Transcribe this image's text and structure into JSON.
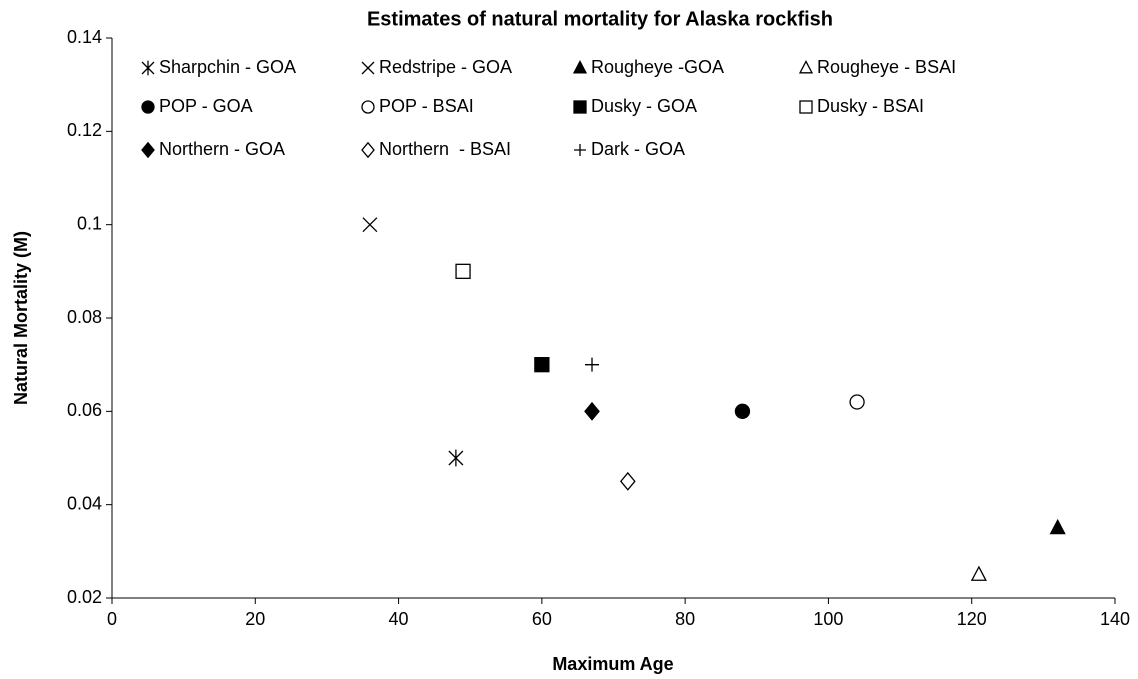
{
  "chart_data": {
    "type": "scatter",
    "title": "Estimates of natural mortality for Alaska rockfish",
    "x_label": "Maximum Age",
    "y_label": "Natural Mortality (M)",
    "xlim": [
      0,
      140
    ],
    "xticks": [
      0,
      20,
      40,
      60,
      80,
      100,
      120,
      140
    ],
    "ylim": [
      0.02,
      0.14
    ],
    "yticks": [
      0.02,
      0.04,
      0.06,
      0.08,
      0.1,
      0.12,
      0.14
    ],
    "grid": false,
    "color": "#000000",
    "series": [
      {
        "name": "Sharpchin - GOA",
        "marker": "asterisk",
        "x": [
          48
        ],
        "values": [
          0.05
        ]
      },
      {
        "name": "Redstripe - GOA",
        "marker": "cross",
        "x": [
          36
        ],
        "values": [
          0.1
        ]
      },
      {
        "name": "Rougheye -GOA",
        "marker": "triangle",
        "x": [
          132
        ],
        "values": [
          0.035
        ]
      },
      {
        "name": "Rougheye - BSAI",
        "marker": "triangle-open",
        "x": [
          121
        ],
        "values": [
          0.025
        ]
      },
      {
        "name": "POP - GOA",
        "marker": "circle",
        "x": [
          88
        ],
        "values": [
          0.06
        ]
      },
      {
        "name": "POP - BSAI",
        "marker": "circle-open",
        "x": [
          104
        ],
        "values": [
          0.062
        ]
      },
      {
        "name": "Dusky - GOA",
        "marker": "square",
        "x": [
          60
        ],
        "values": [
          0.07
        ]
      },
      {
        "name": "Dusky - BSAI",
        "marker": "square-open",
        "x": [
          49
        ],
        "values": [
          0.09
        ]
      },
      {
        "name": "Northern - GOA",
        "marker": "diamond",
        "x": [
          67
        ],
        "values": [
          0.06
        ]
      },
      {
        "name": "Northern  - BSAI",
        "marker": "diamond-open",
        "x": [
          72
        ],
        "values": [
          0.045
        ]
      },
      {
        "name": "Dark - GOA",
        "marker": "plus",
        "x": [
          67
        ],
        "values": [
          0.07
        ]
      }
    ]
  }
}
